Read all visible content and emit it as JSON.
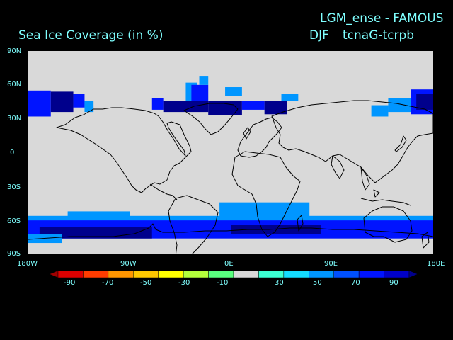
{
  "title": {
    "experiment": "LGM_ense - FAMOUS",
    "variable": "Sea Ice Coverage (in %)",
    "season": "DJF",
    "difference": "tcnaG-tcrpb"
  },
  "chart_data": {
    "type": "heatmap",
    "xlim": [
      -180,
      180
    ],
    "ylim": [
      -90,
      90
    ],
    "x_ticks": [
      "180W",
      "90W",
      "0E",
      "90E",
      "180E"
    ],
    "y_ticks": [
      "90N",
      "60N",
      "30N",
      "0",
      "30S",
      "60S",
      "90S"
    ],
    "colorbar": {
      "labels": [
        "-90",
        "-70",
        "-50",
        "-30",
        "-10",
        "30",
        "50",
        "70",
        "90"
      ],
      "colors": [
        "#a00000",
        "#dc0000",
        "#ff3c00",
        "#ff9600",
        "#ffc800",
        "#ffff00",
        "#b4ff3c",
        "#5aff7f",
        "#d9d9d9",
        "#3cffd2",
        "#14dcff",
        "#0096ff",
        "#0050ff",
        "#0014ff",
        "#0000c8",
        "#00008c"
      ]
    },
    "background_color": "#d9d9d9",
    "regions": [
      {
        "lon": [
          -180,
          -160
        ],
        "lat": [
          32,
          55
        ],
        "value": 50
      },
      {
        "lon": [
          -160,
          -140
        ],
        "lat": [
          36,
          54
        ],
        "value": 70
      },
      {
        "lon": [
          -140,
          -130
        ],
        "lat": [
          40,
          52
        ],
        "value": 50
      },
      {
        "lon": [
          -130,
          -122
        ],
        "lat": [
          36,
          46
        ],
        "value": 30
      },
      {
        "lon": [
          -70,
          -60
        ],
        "lat": [
          38,
          48
        ],
        "value": 50
      },
      {
        "lon": [
          -60,
          -20
        ],
        "lat": [
          36,
          46
        ],
        "value": 70
      },
      {
        "lon": [
          -40,
          -30
        ],
        "lat": [
          46,
          62
        ],
        "value": 30
      },
      {
        "lon": [
          -35,
          -20
        ],
        "lat": [
          46,
          60
        ],
        "value": 50
      },
      {
        "lon": [
          -28,
          -20
        ],
        "lat": [
          60,
          68
        ],
        "value": 30
      },
      {
        "lon": [
          -20,
          10
        ],
        "lat": [
          33,
          46
        ],
        "value": 70
      },
      {
        "lon": [
          -5,
          10
        ],
        "lat": [
          50,
          58
        ],
        "value": 30
      },
      {
        "lon": [
          10,
          30
        ],
        "lat": [
          38,
          46
        ],
        "value": 50
      },
      {
        "lon": [
          30,
          50
        ],
        "lat": [
          34,
          46
        ],
        "value": 70
      },
      {
        "lon": [
          45,
          60
        ],
        "lat": [
          46,
          52
        ],
        "value": 30
      },
      {
        "lon": [
          125,
          140
        ],
        "lat": [
          32,
          42
        ],
        "value": 30
      },
      {
        "lon": [
          140,
          160
        ],
        "lat": [
          36,
          48
        ],
        "value": 30
      },
      {
        "lon": [
          160,
          180
        ],
        "lat": [
          34,
          56
        ],
        "value": 50
      },
      {
        "lon": [
          165,
          180
        ],
        "lat": [
          38,
          52
        ],
        "value": 70
      },
      {
        "lon": [
          -145,
          -90
        ],
        "lat": [
          -60,
          -52
        ],
        "value": 30
      },
      {
        "lon": [
          -180,
          180
        ],
        "lat": [
          -68,
          -56
        ],
        "value": 30
      },
      {
        "lon": [
          -10,
          70
        ],
        "lat": [
          -58,
          -44
        ],
        "value": 30
      },
      {
        "lon": [
          -180,
          180
        ],
        "lat": [
          -76,
          -60
        ],
        "value": 50
      },
      {
        "lon": [
          -170,
          -70
        ],
        "lat": [
          -76,
          -66
        ],
        "value": 70
      },
      {
        "lon": [
          0,
          80
        ],
        "lat": [
          -72,
          -64
        ],
        "value": 70
      },
      {
        "lon": [
          80,
          130
        ],
        "lat": [
          -72,
          -66
        ],
        "value": 50
      },
      {
        "lon": [
          -180,
          -150
        ],
        "lat": [
          -80,
          -72
        ],
        "value": 30
      }
    ]
  }
}
